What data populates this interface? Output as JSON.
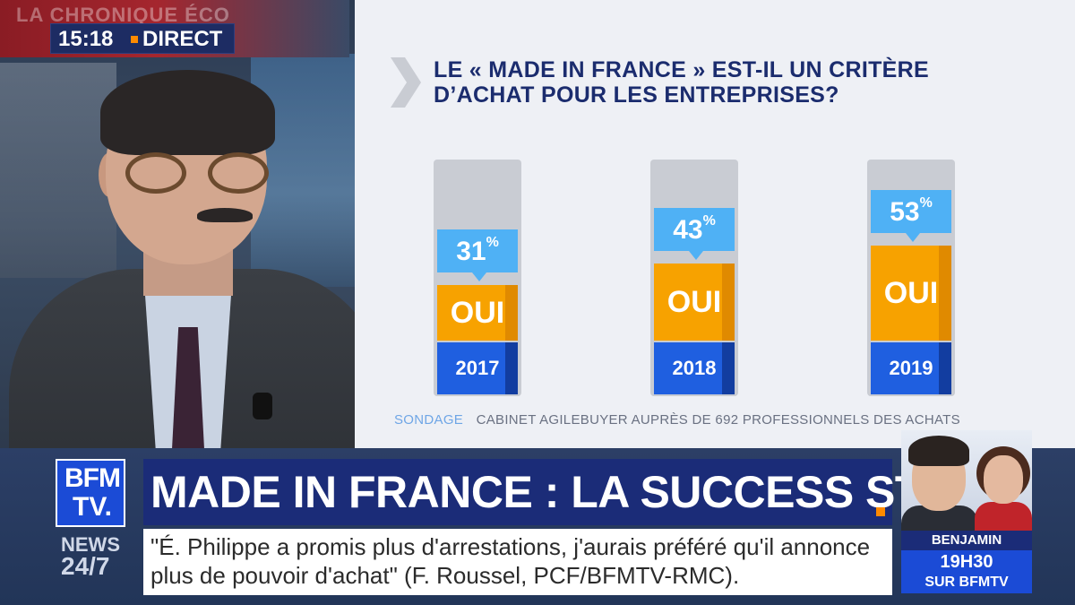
{
  "channel": {
    "segment": "LA CHRONIQUE ÉCO",
    "time": "15:18",
    "live_label": "DIRECT",
    "logo_line1": "BFM",
    "logo_line2": "TV."
  },
  "infographic": {
    "title": "LE « MADE IN FRANCE » EST-IL UN CRITÈRE D’ACHAT POUR LES ENTREPRISES?",
    "source_label": "SONDAGE",
    "source_text": "CABINET AGILEBUYER AUPRÈS DE 692 PROFESSIONNELS DES ACHATS",
    "bar_label": "OUI",
    "colors": {
      "fill": "#f7a200",
      "year_box": "#1f5fe0",
      "bubble": "#4fb1f5",
      "title": "#1b2c6e"
    }
  },
  "chart_data": {
    "type": "bar",
    "categories": [
      "2017",
      "2018",
      "2019"
    ],
    "values": [
      31,
      43,
      53
    ],
    "unit": "%",
    "series": [
      {
        "name": "OUI",
        "values": [
          31,
          43,
          53
        ]
      }
    ]
  },
  "banner": {
    "headline": "MADE IN FRANCE : LA SUCCESS STORY",
    "news_line1": "NEWS",
    "news_line2": "24/7",
    "ticker": "\"É. Philippe a promis plus d'arrestations, j'aurais préféré qu'il annonce plus de pouvoir d'achat\" (F. Roussel, PCF/BFMTV-RMC)."
  },
  "promo": {
    "name": "BENJAMIN GRIVEAUX",
    "time": "19H30",
    "channel": "SUR BFMTV"
  }
}
